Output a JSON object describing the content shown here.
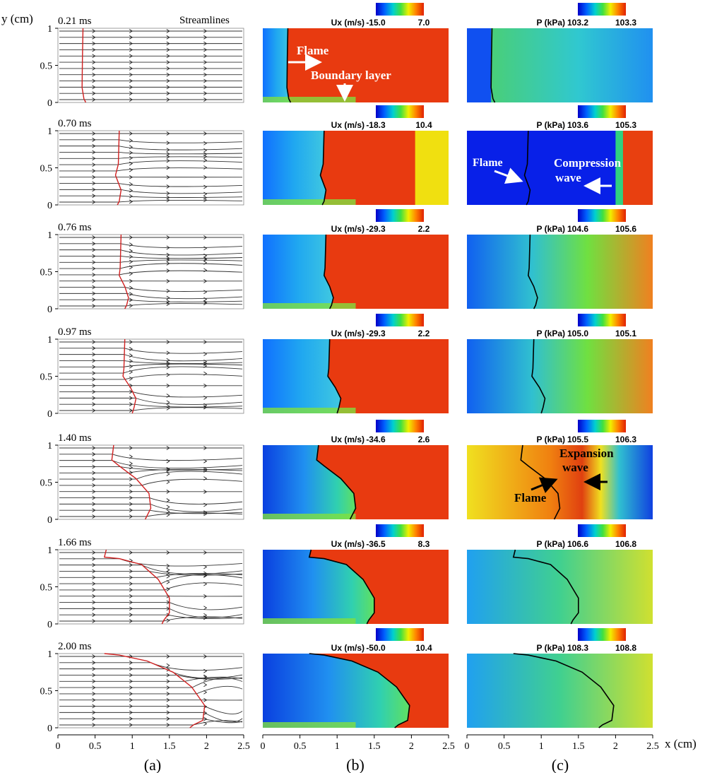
{
  "figure": {
    "y_axis_label": "y (cm)",
    "x_axis_label": "x (cm)",
    "y_ticks": [
      "0",
      "0.5",
      "1"
    ],
    "x_ticks": [
      "0",
      "0.5",
      "1",
      "1.5",
      "2",
      "2.5"
    ],
    "panel_labels": [
      "(a)",
      "(b)",
      "(c)"
    ],
    "streamlines_label": "Streamlines",
    "colormap": [
      "#0000c8",
      "#0060ff",
      "#00d0d0",
      "#40e040",
      "#f0f000",
      "#ff8000",
      "#e02000"
    ]
  },
  "rows": [
    {
      "time": "0.21 ms",
      "ux_label": "Ux (m/s)",
      "ux_min": "-15.0",
      "ux_max": "7.0",
      "p_label": "P (kPa)",
      "p_min": "103.2",
      "p_max": "103.3"
    },
    {
      "time": "0.70 ms",
      "ux_label": "Ux (m/s)",
      "ux_min": "-18.3",
      "ux_max": "10.4",
      "p_label": "P (kPa)",
      "p_min": "103.6",
      "p_max": "105.3"
    },
    {
      "time": "0.76 ms",
      "ux_label": "Ux (m/s)",
      "ux_min": "-29.3",
      "ux_max": "2.2",
      "p_label": "P (kPa)",
      "p_min": "104.6",
      "p_max": "105.6"
    },
    {
      "time": "0.97 ms",
      "ux_label": "Ux (m/s)",
      "ux_min": "-29.3",
      "ux_max": "2.2",
      "p_label": "P (kPa)",
      "p_min": "105.0",
      "p_max": "105.1"
    },
    {
      "time": "1.40 ms",
      "ux_label": "Ux (m/s)",
      "ux_min": "-34.6",
      "ux_max": "2.6",
      "p_label": "P (kPa)",
      "p_min": "105.5",
      "p_max": "106.3"
    },
    {
      "time": "1.66 ms",
      "ux_label": "Ux (m/s)",
      "ux_min": "-36.5",
      "ux_max": "8.3",
      "p_label": "P (kPa)",
      "p_min": "106.6",
      "p_max": "106.8"
    },
    {
      "time": "2.00 ms",
      "ux_label": "Ux (m/s)",
      "ux_min": "-50.0",
      "ux_max": "10.4",
      "p_label": "P (kPa)",
      "p_min": "108.3",
      "p_max": "108.8"
    }
  ],
  "annotations": {
    "flame": "Flame",
    "boundary_layer": "Boundary layer",
    "compression_wave_1": "Compression",
    "compression_wave_2": "wave",
    "expansion_wave_1": "Expansion",
    "expansion_wave_2": "wave"
  }
}
